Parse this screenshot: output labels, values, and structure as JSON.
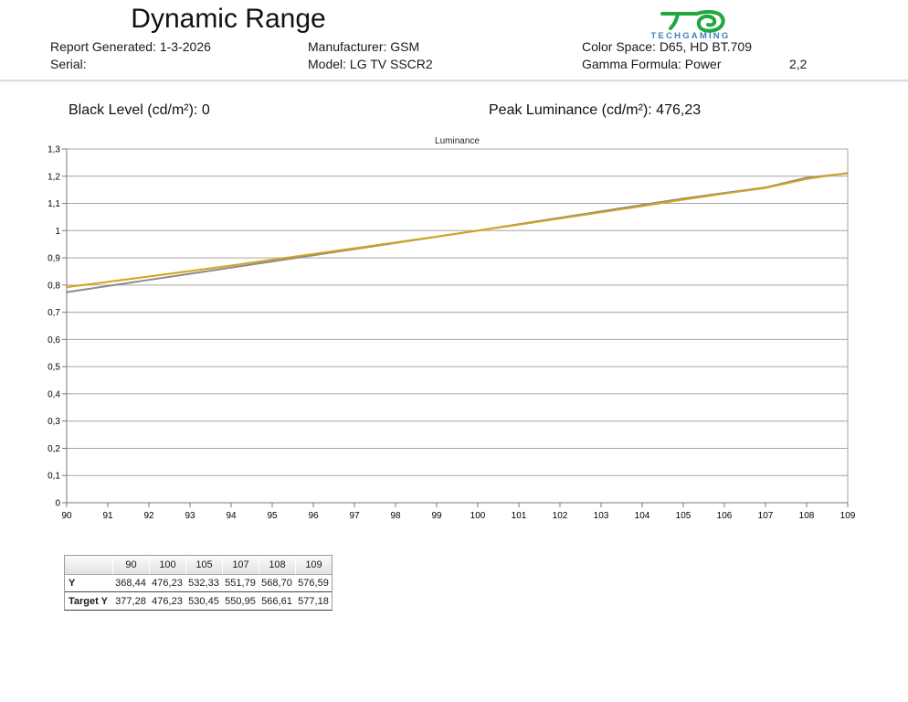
{
  "header": {
    "title": "Dynamic Range",
    "report_generated": "Report Generated: 1-3-2026",
    "serial": "Serial:",
    "manufacturer": "Manufacturer: GSM",
    "model": "Model: LG TV SSCR2",
    "color_space": "Color Space: D65, HD BT.709",
    "gamma_formula": "Gamma Formula: Power",
    "gamma_value": "2,2",
    "logo": {
      "brand": "TECHGAMING",
      "glyph": "tg-monogram",
      "green": "#1fa83c",
      "blue": "#3f7fc1"
    }
  },
  "summary": {
    "black_level": "Black Level (cd/m²): 0",
    "peak_luminance": "Peak Luminance (cd/m²): 476,23"
  },
  "chart_data": {
    "type": "line",
    "title": "Luminance",
    "xlabel": "",
    "ylabel": "",
    "xlim": [
      90,
      109
    ],
    "ylim": [
      0,
      1.3
    ],
    "grid": "horizontal",
    "legend": "none",
    "x_tick_labels": [
      "90",
      "91",
      "92",
      "93",
      "94",
      "95",
      "96",
      "97",
      "98",
      "99",
      "100",
      "101",
      "102",
      "103",
      "104",
      "105",
      "106",
      "107",
      "108",
      "109"
    ],
    "y_tick_labels": [
      "0",
      "0,1",
      "0,2",
      "0,3",
      "0,4",
      "0,5",
      "0,6",
      "0,7",
      "0,8",
      "0,9",
      "1",
      "1,1",
      "1,2",
      "1,3"
    ],
    "x": [
      90,
      91,
      92,
      93,
      94,
      95,
      96,
      97,
      98,
      99,
      100,
      101,
      102,
      103,
      104,
      105,
      106,
      107,
      108,
      109
    ],
    "series": [
      {
        "name": "Y",
        "color": "#8a8a8a",
        "values": [
          0.7737,
          0.7963,
          0.819,
          0.8416,
          0.8642,
          0.8869,
          0.9095,
          0.9321,
          0.9547,
          0.9774,
          1.0,
          1.0236,
          1.0471,
          1.0707,
          1.0942,
          1.1178,
          1.1383,
          1.1587,
          1.1942,
          1.2107
        ]
      },
      {
        "name": "Target Y",
        "color": "#d2a41f",
        "values": [
          0.7922,
          0.8117,
          0.8315,
          0.8515,
          0.8717,
          0.8933,
          0.9141,
          0.9352,
          0.9565,
          0.9781,
          1.0,
          1.0221,
          1.0445,
          1.0672,
          1.0901,
          1.1139,
          1.136,
          1.1569,
          1.1898,
          1.212
        ]
      }
    ],
    "axis_color": "#7a7a7a",
    "grid_color": "#a6a6a6"
  },
  "table": {
    "columns": [
      "",
      "90",
      "100",
      "105",
      "107",
      "108",
      "109"
    ],
    "rows": [
      {
        "label": "Y",
        "values": [
          "368,44",
          "476,23",
          "532,33",
          "551,79",
          "568,70",
          "576,59"
        ]
      },
      {
        "label": "Target Y",
        "values": [
          "377,28",
          "476,23",
          "530,45",
          "550,95",
          "566,61",
          "577,18"
        ]
      }
    ]
  }
}
